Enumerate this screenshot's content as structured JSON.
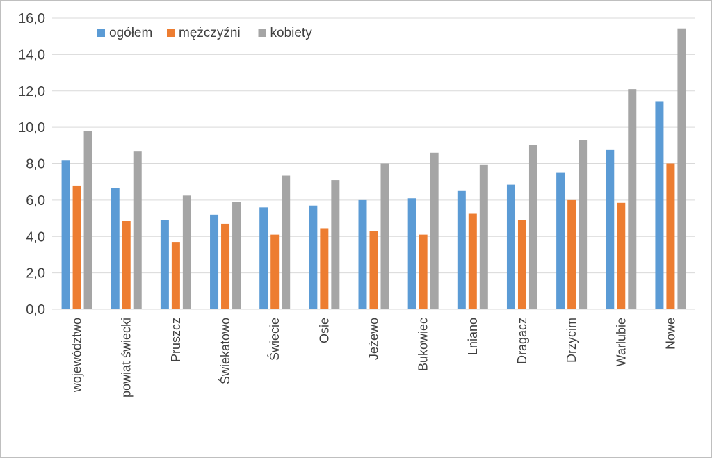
{
  "chart_data": {
    "type": "bar",
    "categories": [
      "województwo",
      "powiat świecki",
      "Pruszcz",
      "Świekatowo",
      "Świecie",
      "Osie",
      "Jeżewo",
      "Bukowiec",
      "Lniano",
      "Dragacz",
      "Drzycim",
      "Warlubie",
      "Nowe"
    ],
    "series": [
      {
        "name": "ogółem",
        "color": "#5b9bd5",
        "values": [
          8.2,
          6.65,
          4.9,
          5.2,
          5.6,
          5.7,
          6.0,
          6.1,
          6.5,
          6.85,
          7.5,
          8.75,
          11.4
        ]
      },
      {
        "name": "mężczyźni",
        "color": "#ed7d31",
        "values": [
          6.8,
          4.85,
          3.7,
          4.7,
          4.1,
          4.45,
          4.3,
          4.1,
          5.25,
          4.9,
          6.0,
          5.85,
          8.0
        ]
      },
      {
        "name": "kobiety",
        "color": "#a5a5a5",
        "values": [
          9.8,
          8.7,
          6.25,
          5.9,
          7.35,
          7.1,
          8.0,
          8.6,
          7.95,
          9.05,
          9.3,
          12.1,
          15.4
        ]
      }
    ],
    "yticks": [
      "0,0",
      "2,0",
      "4,0",
      "6,0",
      "8,0",
      "10,0",
      "12,0",
      "14,0",
      "16,0"
    ],
    "ylim": [
      0,
      16
    ],
    "title": "",
    "xlabel": "",
    "ylabel": "",
    "grid": true,
    "legend_position": "top-left"
  }
}
